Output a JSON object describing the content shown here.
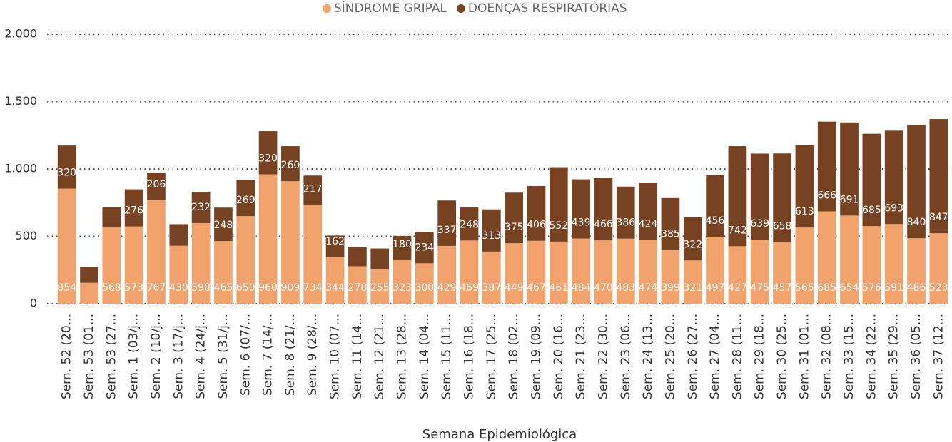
{
  "chart_data": {
    "type": "stacked_bar",
    "x_label": "Semana Epidemiológica",
    "categories": [
      "Sem. 52 (20...",
      "Sem. 53 (01...",
      "Sem. 53 (27...",
      "Sem. 1 (03/j...",
      "Sem. 2 (10/j...",
      "Sem. 3 (17/j...",
      "Sem. 4 (24/j...",
      "Sem. 5 (31/j...",
      "Sem. 6 (07/...",
      "Sem. 7 (14/...",
      "Sem. 8 (21/...",
      "Sem. 9 (28/...",
      "Sem. 10 (07...",
      "Sem. 11 (14...",
      "Sem. 12 (21...",
      "Sem. 13 (28...",
      "Sem. 14 (04...",
      "Sem. 15 (11...",
      "Sem. 16 (18...",
      "Sem. 17 (25...",
      "Sem. 18 (02...",
      "Sem. 19 (09...",
      "Sem. 20 (16...",
      "Sem. 21 (23...",
      "Sem. 22 (30...",
      "Sem. 23 (06...",
      "Sem. 24 (13...",
      "Sem. 25 (20...",
      "Sem. 26 (27...",
      "Sem. 27 (04...",
      "Sem. 28 (11...",
      "Sem. 29 (18...",
      "Sem. 30 (25...",
      "Sem. 31 (01...",
      "Sem. 32 (08...",
      "Sem. 33 (15...",
      "Sem. 34 (22...",
      "Sem. 35 (29...",
      "Sem. 36 (05...",
      "Sem. 37 (12..."
    ],
    "series": [
      {
        "name": "SÍNDROME GRIPAL",
        "color": "#f2a36d",
        "values": [
          854,
          155,
          568,
          573,
          767,
          430,
          598,
          465,
          650,
          960,
          909,
          734,
          344,
          278,
          255,
          323,
          300,
          429,
          469,
          387,
          449,
          467,
          461,
          484,
          470,
          483,
          474,
          399,
          321,
          497,
          427,
          475,
          457,
          565,
          685,
          654,
          576,
          591,
          486,
          523
        ]
      },
      {
        "name": "DOENÇAS RESPIRATÓRIAS",
        "color": "#774222",
        "values": [
          320,
          117,
          147,
          276,
          206,
          160,
          232,
          248,
          269,
          320,
          260,
          217,
          162,
          142,
          155,
          180,
          234,
          337,
          248,
          313,
          375,
          406,
          552,
          439,
          466,
          386,
          424,
          385,
          322,
          456,
          742,
          639,
          658,
          613,
          666,
          691,
          685,
          693,
          840,
          847
        ]
      }
    ],
    "ylim": [
      0,
      2000
    ],
    "yticks": [
      0,
      500,
      {
        "value": 1000,
        "label": "1.000"
      },
      {
        "value": 1500,
        "label": "1.500"
      },
      {
        "value": 2000,
        "label": "2.000"
      }
    ],
    "grid": true
  }
}
